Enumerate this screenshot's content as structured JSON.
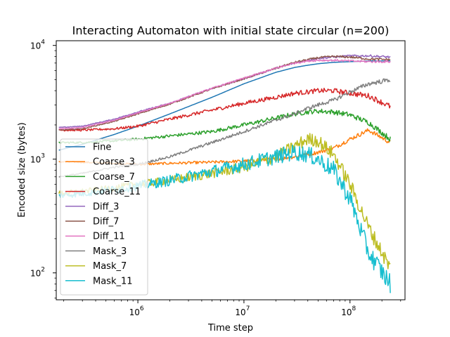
{
  "chart_data": {
    "type": "line",
    "title": "Interacting Automaton with initial state circular (n=200)",
    "xlabel": "Time step",
    "ylabel": "Encoded size (bytes)",
    "xscale": "log",
    "yscale": "log",
    "xlim": [
      170000,
      330000000
    ],
    "ylim": [
      58,
      11000
    ],
    "grid": false,
    "legend_position": "lower-left",
    "x_ticks": [
      {
        "value": 1000000,
        "base": "10",
        "exp": "6"
      },
      {
        "value": 10000000,
        "base": "10",
        "exp": "7"
      },
      {
        "value": 100000000,
        "base": "10",
        "exp": "8"
      }
    ],
    "y_ticks": [
      {
        "value": 100,
        "base": "10",
        "exp": "2"
      },
      {
        "value": 1000,
        "base": "10",
        "exp": "3"
      },
      {
        "value": 10000,
        "base": "10",
        "exp": "4"
      }
    ],
    "x": [
      180000,
      300000,
      600000,
      1000000,
      2000000,
      5000000,
      10000000,
      20000000,
      30000000,
      40000000,
      50000000,
      70000000,
      100000000,
      150000000,
      240000000
    ],
    "series": [
      {
        "name": "Fine",
        "color": "#1f77b4",
        "noise": 0.0,
        "values": [
          1200,
          1350,
          1650,
          1950,
          2500,
          3500,
          4600,
          5800,
          6400,
          6700,
          6900,
          7100,
          7200,
          7300,
          7300
        ]
      },
      {
        "name": "Coarse_3",
        "color": "#ff7f0e",
        "noise": 0.02,
        "values": [
          950,
          940,
          920,
          900,
          920,
          940,
          960,
          1000,
          1050,
          1100,
          1150,
          1250,
          1500,
          1800,
          1400
        ]
      },
      {
        "name": "Coarse_7",
        "color": "#2ca02c",
        "noise": 0.025,
        "values": [
          1400,
          1400,
          1450,
          1500,
          1600,
          1750,
          2000,
          2300,
          2500,
          2600,
          2650,
          2600,
          2450,
          2100,
          1500
        ]
      },
      {
        "name": "Coarse_11",
        "color": "#d62728",
        "noise": 0.025,
        "values": [
          1800,
          1800,
          1850,
          1950,
          2250,
          2700,
          3100,
          3500,
          3800,
          3900,
          4000,
          4000,
          3800,
          3600,
          2900
        ]
      },
      {
        "name": "Diff_3",
        "color": "#9467bd",
        "noise": 0.01,
        "values": [
          1900,
          1950,
          2250,
          2600,
          3100,
          4200,
          5100,
          6300,
          7000,
          7400,
          7700,
          7900,
          8100,
          8100,
          7900
        ]
      },
      {
        "name": "Diff_7",
        "color": "#8c564b",
        "noise": 0.01,
        "values": [
          1800,
          1850,
          2150,
          2500,
          3050,
          4150,
          5100,
          6300,
          7100,
          7500,
          7800,
          8000,
          7900,
          7600,
          7500
        ]
      },
      {
        "name": "Diff_11",
        "color": "#e377c2",
        "noise": 0.01,
        "values": [
          1850,
          1900,
          2200,
          2550,
          3100,
          4200,
          5150,
          6300,
          7000,
          7300,
          7400,
          7400,
          7300,
          7200,
          7200
        ]
      },
      {
        "name": "Mask_3",
        "color": "#7f7f7f",
        "noise": 0.02,
        "values": [
          700,
          750,
          850,
          900,
          1050,
          1400,
          1750,
          2200,
          2500,
          2800,
          3000,
          3300,
          3900,
          4600,
          5000
        ]
      },
      {
        "name": "Mask_7",
        "color": "#bcbd22",
        "noise": 0.07,
        "values": [
          500,
          520,
          560,
          600,
          650,
          750,
          850,
          1050,
          1300,
          1500,
          1450,
          1100,
          600,
          250,
          110
        ]
      },
      {
        "name": "Mask_11",
        "color": "#17becf",
        "noise": 0.09,
        "values": [
          480,
          500,
          540,
          580,
          650,
          780,
          900,
          1050,
          1150,
          1100,
          1000,
          800,
          450,
          150,
          80
        ]
      }
    ]
  }
}
